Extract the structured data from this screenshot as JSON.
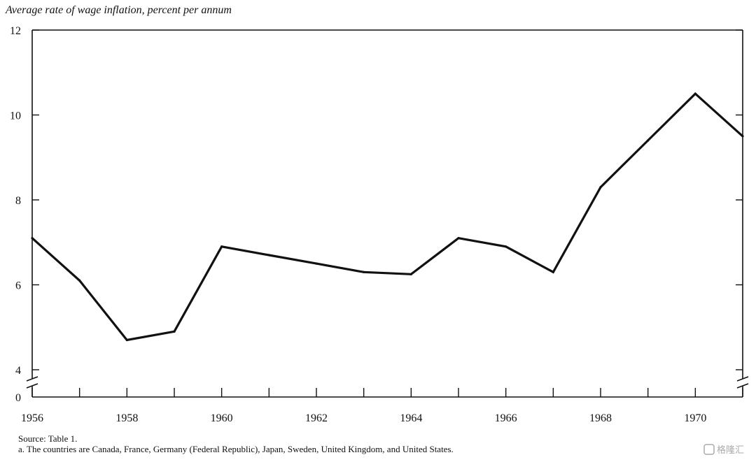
{
  "chart_data": {
    "type": "line",
    "title": "",
    "ylabel": "Average rate of wage inflation, percent per annum",
    "xlabel": "",
    "xlim": [
      1956,
      1971
    ],
    "ylim": [
      0,
      12
    ],
    "y_axis_break": true,
    "grid": false,
    "legend": "none",
    "x_ticks": [
      1956,
      1957,
      1958,
      1959,
      1960,
      1961,
      1962,
      1963,
      1964,
      1965,
      1966,
      1967,
      1968,
      1969,
      1970,
      1971
    ],
    "x_tick_labels": [
      "1956",
      "1958",
      "1960",
      "1962",
      "1964",
      "1966",
      "1968",
      "1970"
    ],
    "y_tick_labels": [
      "0",
      "4",
      "6",
      "8",
      "10",
      "12"
    ],
    "series": [
      {
        "x": [
          1956,
          1957,
          1958,
          1959,
          1960,
          1961,
          1962,
          1963,
          1964,
          1965,
          1966,
          1967,
          1968,
          1969,
          1970,
          1971
        ],
        "values": [
          7.1,
          6.1,
          4.7,
          4.9,
          6.9,
          6.7,
          6.5,
          6.3,
          6.25,
          7.1,
          6.9,
          6.3,
          8.3,
          9.4,
          10.5,
          9.5
        ]
      }
    ],
    "color": "#111111"
  },
  "notes": {
    "source": "Source: Table 1.",
    "footnote": "a. The countries are Canada, France, Germany (Federal Republic), Japan, Sweden, United Kingdom, and United States."
  },
  "watermark": "格隆汇"
}
